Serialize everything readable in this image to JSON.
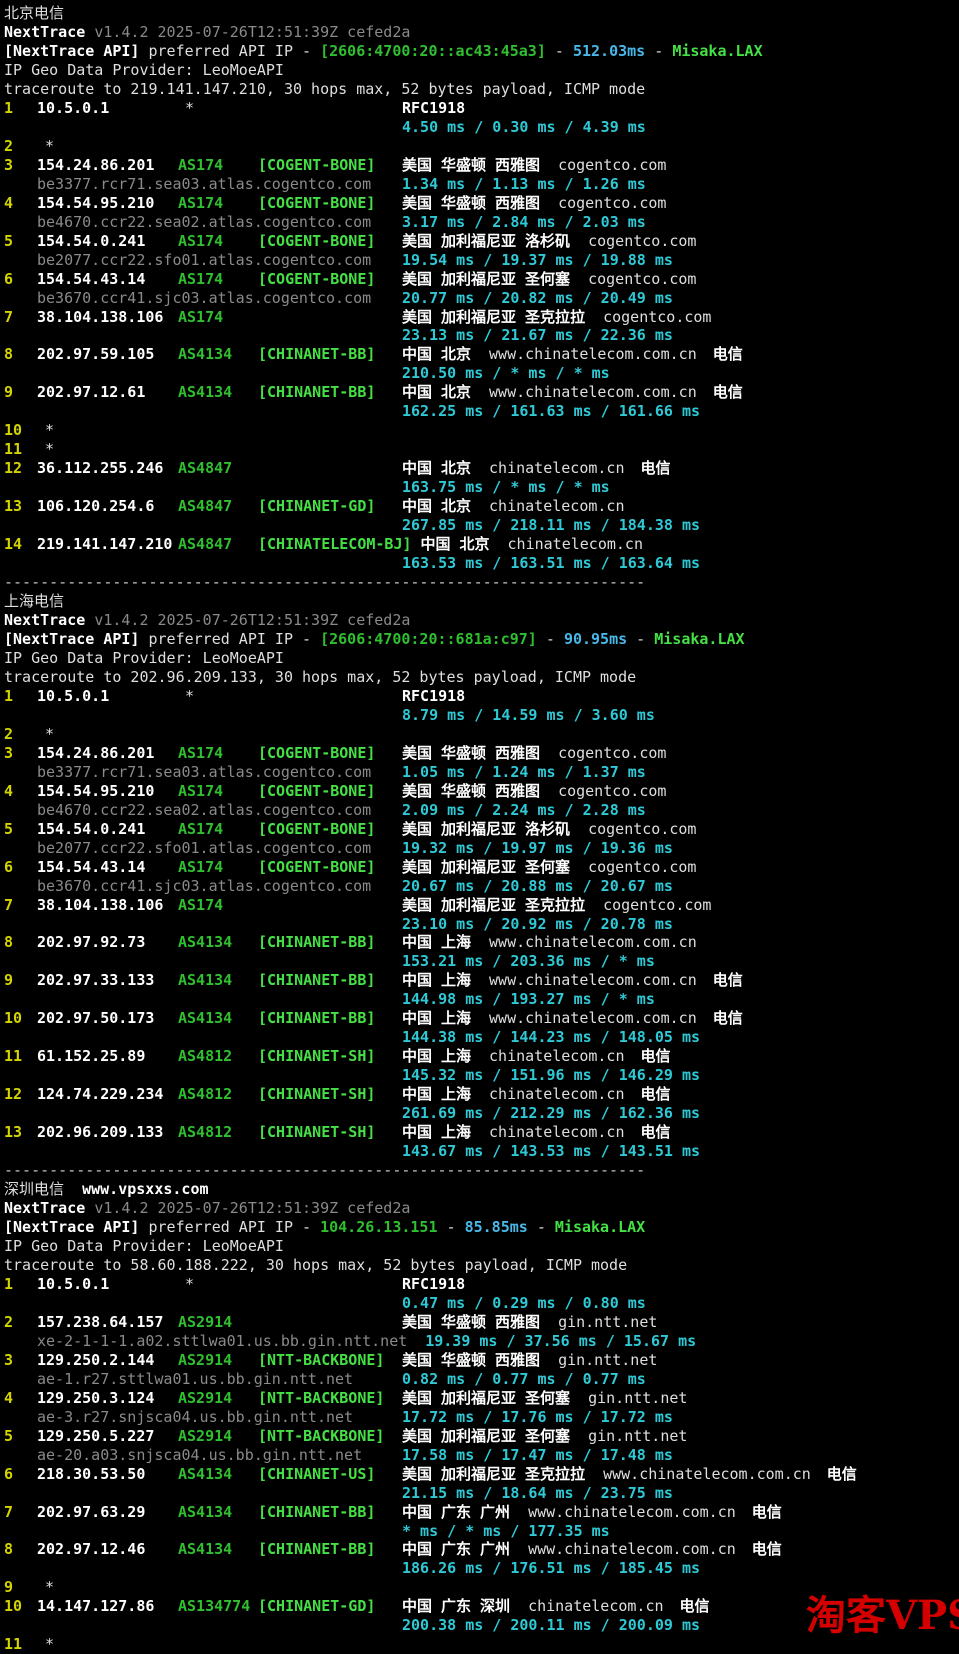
{
  "watermark": "淘客VPS",
  "separator": "-----------------------------------------------------------------------",
  "colors": {
    "background": "#000000",
    "foreground": "#DFDFDF",
    "hop_number_yellow": "#D4D400",
    "asn_green": "#2FBF2F",
    "tag_bright_green": "#45E045",
    "latency_cyan": "#2FC9D6",
    "api_latency_blue": "#49B8E8",
    "hostname_gray": "#8A8A8A",
    "watermark_red": "#D40000"
  },
  "sections": [
    {
      "title": [
        {
          "t": "北京电信",
          "c": "w"
        }
      ],
      "headers": [
        [
          {
            "t": "NextTrace",
            "c": "bw"
          },
          {
            "t": " ",
            "c": "w"
          },
          {
            "t": "v1.4.2 2025-07-26T12:51:39Z cefed2a",
            "c": "gy"
          }
        ],
        [
          {
            "t": "[NextTrace API]",
            "c": "bw"
          },
          {
            "t": " preferred API IP - ",
            "c": "w"
          },
          {
            "t": "[2606:4700:20::ac43:45a3]",
            "c": "g"
          },
          {
            "t": " - ",
            "c": "w"
          },
          {
            "t": "512.03ms",
            "c": "b"
          },
          {
            "t": " - ",
            "c": "w"
          },
          {
            "t": "Misaka.LAX",
            "c": "bg"
          }
        ],
        [
          {
            "t": "IP Geo Data Provider: LeoMoeAPI",
            "c": "w"
          }
        ],
        [
          {
            "t": "traceroute to 219.141.147.210, 30 hops max, 52 bytes payload, ICMP mode",
            "c": "w"
          }
        ]
      ],
      "hops": [
        {
          "n": "1",
          "ip": "10.5.0.1",
          "star2": "*",
          "geo": "RFC1918",
          "lat": "4.50 ms / 0.30 ms / 4.39 ms"
        },
        {
          "n": "2",
          "star": "*"
        },
        {
          "n": "3",
          "ip": "154.24.86.201",
          "asn": "AS174",
          "tag": "[COGENT-BONE]",
          "geo": "美国 华盛顿 西雅图",
          "domain": "cogentco.com",
          "host": "be3377.rcr71.sea03.atlas.cogentco.com",
          "lat": "1.34 ms / 1.13 ms / 1.26 ms"
        },
        {
          "n": "4",
          "ip": "154.54.95.210",
          "asn": "AS174",
          "tag": "[COGENT-BONE]",
          "geo": "美国 华盛顿 西雅图",
          "domain": "cogentco.com",
          "host": "be4670.ccr22.sea02.atlas.cogentco.com",
          "lat": "3.17 ms / 2.84 ms / 2.03 ms"
        },
        {
          "n": "5",
          "ip": "154.54.0.241",
          "asn": "AS174",
          "tag": "[COGENT-BONE]",
          "geo": "美国 加利福尼亚 洛杉矶",
          "domain": "cogentco.com",
          "host": "be2077.ccr22.sfo01.atlas.cogentco.com",
          "lat": "19.54 ms / 19.37 ms / 19.88 ms"
        },
        {
          "n": "6",
          "ip": "154.54.43.14",
          "asn": "AS174",
          "tag": "[COGENT-BONE]",
          "geo": "美国 加利福尼亚 圣何塞",
          "domain": "cogentco.com",
          "host": "be3670.ccr41.sjc03.atlas.cogentco.com",
          "lat": "20.77 ms / 20.82 ms / 20.49 ms"
        },
        {
          "n": "7",
          "ip": "38.104.138.106",
          "asn": "AS174",
          "geo": "美国 加利福尼亚 圣克拉拉",
          "domain": "cogentco.com",
          "lat": "23.13 ms / 21.67 ms / 22.36 ms"
        },
        {
          "n": "8",
          "ip": "202.97.59.105",
          "asn": "AS4134",
          "tag": "[CHINANET-BB]",
          "geo": "中国 北京",
          "domain": "www.chinatelecom.com.cn",
          "carrier": "电信",
          "lat": "210.50 ms / * ms / * ms"
        },
        {
          "n": "9",
          "ip": "202.97.12.61",
          "asn": "AS4134",
          "tag": "[CHINANET-BB]",
          "geo": "中国 北京",
          "domain": "www.chinatelecom.com.cn",
          "carrier": "电信",
          "lat": "162.25 ms / 161.63 ms / 161.66 ms"
        },
        {
          "n": "10",
          "star": "*"
        },
        {
          "n": "11",
          "star": "*"
        },
        {
          "n": "12",
          "ip": "36.112.255.246",
          "asn": "AS4847",
          "geo": "中国 北京",
          "domain": "chinatelecom.cn",
          "carrier": "电信",
          "lat": "163.75 ms / * ms / * ms"
        },
        {
          "n": "13",
          "ip": "106.120.254.6",
          "asn": "AS4847",
          "tag": "[CHINANET-GD]",
          "geo": "中国 北京",
          "domain": "chinatelecom.cn",
          "lat": "267.85 ms / 218.11 ms / 184.38 ms"
        },
        {
          "n": "14",
          "ip": "219.141.147.210",
          "asn": "AS4847",
          "tag": "[CHINATELECOM-BJ]",
          "geo": "中国 北京",
          "domain": "chinatelecom.cn",
          "lat": "163.53 ms / 163.51 ms / 163.64 ms"
        }
      ]
    },
    {
      "title": [
        {
          "t": "上海电信",
          "c": "w"
        }
      ],
      "headers": [
        [
          {
            "t": "NextTrace",
            "c": "bw"
          },
          {
            "t": " ",
            "c": "w"
          },
          {
            "t": "v1.4.2 2025-07-26T12:51:39Z cefed2a",
            "c": "gy"
          }
        ],
        [
          {
            "t": "[NextTrace API]",
            "c": "bw"
          },
          {
            "t": " preferred API IP - ",
            "c": "w"
          },
          {
            "t": "[2606:4700:20::681a:c97]",
            "c": "g"
          },
          {
            "t": " - ",
            "c": "w"
          },
          {
            "t": "90.95ms",
            "c": "b"
          },
          {
            "t": " - ",
            "c": "w"
          },
          {
            "t": "Misaka.LAX",
            "c": "bg"
          }
        ],
        [
          {
            "t": "IP Geo Data Provider: LeoMoeAPI",
            "c": "w"
          }
        ],
        [
          {
            "t": "traceroute to 202.96.209.133, 30 hops max, 52 bytes payload, ICMP mode",
            "c": "w"
          }
        ]
      ],
      "hops": [
        {
          "n": "1",
          "ip": "10.5.0.1",
          "star2": "*",
          "geo": "RFC1918",
          "lat": "8.79 ms / 14.59 ms / 3.60 ms"
        },
        {
          "n": "2",
          "star": "*"
        },
        {
          "n": "3",
          "ip": "154.24.86.201",
          "asn": "AS174",
          "tag": "[COGENT-BONE]",
          "geo": "美国 华盛顿 西雅图",
          "domain": "cogentco.com",
          "host": "be3377.rcr71.sea03.atlas.cogentco.com",
          "lat": "1.05 ms / 1.24 ms / 1.37 ms"
        },
        {
          "n": "4",
          "ip": "154.54.95.210",
          "asn": "AS174",
          "tag": "[COGENT-BONE]",
          "geo": "美国 华盛顿 西雅图",
          "domain": "cogentco.com",
          "host": "be4670.ccr22.sea02.atlas.cogentco.com",
          "lat": "2.09 ms / 2.24 ms / 2.28 ms"
        },
        {
          "n": "5",
          "ip": "154.54.0.241",
          "asn": "AS174",
          "tag": "[COGENT-BONE]",
          "geo": "美国 加利福尼亚 洛杉矶",
          "domain": "cogentco.com",
          "host": "be2077.ccr22.sfo01.atlas.cogentco.com",
          "lat": "19.32 ms / 19.97 ms / 19.36 ms"
        },
        {
          "n": "6",
          "ip": "154.54.43.14",
          "asn": "AS174",
          "tag": "[COGENT-BONE]",
          "geo": "美国 加利福尼亚 圣何塞",
          "domain": "cogentco.com",
          "host": "be3670.ccr41.sjc03.atlas.cogentco.com",
          "lat": "20.67 ms / 20.88 ms / 20.67 ms"
        },
        {
          "n": "7",
          "ip": "38.104.138.106",
          "asn": "AS174",
          "geo": "美国 加利福尼亚 圣克拉拉",
          "domain": "cogentco.com",
          "lat": "23.10 ms / 20.92 ms / 20.78 ms"
        },
        {
          "n": "8",
          "ip": "202.97.92.73",
          "asn": "AS4134",
          "tag": "[CHINANET-BB]",
          "geo": "中国 上海",
          "domain": "www.chinatelecom.com.cn",
          "lat": "153.21 ms / 203.36 ms / * ms"
        },
        {
          "n": "9",
          "ip": "202.97.33.133",
          "asn": "AS4134",
          "tag": "[CHINANET-BB]",
          "geo": "中国 上海",
          "domain": "www.chinatelecom.com.cn",
          "carrier": "电信",
          "lat": "144.98 ms / 193.27 ms / * ms"
        },
        {
          "n": "10",
          "ip": "202.97.50.173",
          "asn": "AS4134",
          "tag": "[CHINANET-BB]",
          "geo": "中国 上海",
          "domain": "www.chinatelecom.com.cn",
          "carrier": "电信",
          "lat": "144.38 ms / 144.23 ms / 148.05 ms"
        },
        {
          "n": "11",
          "ip": "61.152.25.89",
          "asn": "AS4812",
          "tag": "[CHINANET-SH]",
          "geo": "中国 上海",
          "domain": "chinatelecom.cn",
          "carrier": "电信",
          "lat": "145.32 ms / 151.96 ms / 146.29 ms"
        },
        {
          "n": "12",
          "ip": "124.74.229.234",
          "asn": "AS4812",
          "tag": "[CHINANET-SH]",
          "geo": "中国 上海",
          "domain": "chinatelecom.cn",
          "carrier": "电信",
          "lat": "261.69 ms / 212.29 ms / 162.36 ms"
        },
        {
          "n": "13",
          "ip": "202.96.209.133",
          "asn": "AS4812",
          "tag": "[CHINANET-SH]",
          "geo": "中国 上海",
          "domain": "chinatelecom.cn",
          "carrier": "电信",
          "lat": "143.67 ms / 143.53 ms / 143.51 ms"
        }
      ]
    },
    {
      "title": [
        {
          "t": "深圳电信",
          "c": "w"
        },
        {
          "t": "  ",
          "c": "w"
        },
        {
          "t": "www.vpsxxs.com",
          "c": "bw"
        }
      ],
      "headers": [
        [
          {
            "t": "NextTrace",
            "c": "bw"
          },
          {
            "t": " ",
            "c": "w"
          },
          {
            "t": "v1.4.2 2025-07-26T12:51:39Z cefed2a",
            "c": "gy"
          }
        ],
        [
          {
            "t": "[NextTrace API]",
            "c": "bw"
          },
          {
            "t": " preferred API IP - ",
            "c": "w"
          },
          {
            "t": "104.26.13.151",
            "c": "g"
          },
          {
            "t": " - ",
            "c": "w"
          },
          {
            "t": "85.85ms",
            "c": "b"
          },
          {
            "t": " - ",
            "c": "w"
          },
          {
            "t": "Misaka.LAX",
            "c": "bg"
          }
        ],
        [
          {
            "t": "IP Geo Data Provider: LeoMoeAPI",
            "c": "w"
          }
        ],
        [
          {
            "t": "traceroute to 58.60.188.222, 30 hops max, 52 bytes payload, ICMP mode",
            "c": "w"
          }
        ]
      ],
      "hops": [
        {
          "n": "1",
          "ip": "10.5.0.1",
          "star2": "*",
          "geo": "RFC1918",
          "lat": "0.47 ms / 0.29 ms / 0.80 ms"
        },
        {
          "n": "2",
          "ip": "157.238.64.157",
          "asn": "AS2914",
          "geo": "美国 华盛顿 西雅图",
          "domain": "gin.ntt.net",
          "host": "xe-2-1-1-1.a02.sttlwa01.us.bb.gin.ntt.net",
          "lat": "19.39 ms / 37.56 ms / 15.67 ms"
        },
        {
          "n": "3",
          "ip": "129.250.2.144",
          "asn": "AS2914",
          "tag": "[NTT-BACKBONE]",
          "geo": "美国 华盛顿 西雅图",
          "domain": "gin.ntt.net",
          "host": "ae-1.r27.sttlwa01.us.bb.gin.ntt.net",
          "lat": "0.82 ms / 0.77 ms / 0.77 ms"
        },
        {
          "n": "4",
          "ip": "129.250.3.124",
          "asn": "AS2914",
          "tag": "[NTT-BACKBONE]",
          "geo": "美国 加利福尼亚 圣何塞",
          "domain": "gin.ntt.net",
          "host": "ae-3.r27.snjsca04.us.bb.gin.ntt.net",
          "lat": "17.72 ms / 17.76 ms / 17.72 ms"
        },
        {
          "n": "5",
          "ip": "129.250.5.227",
          "asn": "AS2914",
          "tag": "[NTT-BACKBONE]",
          "geo": "美国 加利福尼亚 圣何塞",
          "domain": "gin.ntt.net",
          "host": "ae-20.a03.snjsca04.us.bb.gin.ntt.net",
          "lat": "17.58 ms / 17.47 ms / 17.48 ms"
        },
        {
          "n": "6",
          "ip": "218.30.53.50",
          "asn": "AS4134",
          "tag": "[CHINANET-US]",
          "geo": "美国 加利福尼亚 圣克拉拉",
          "domain": "www.chinatelecom.com.cn",
          "carrier": "电信",
          "lat": "21.15 ms / 18.64 ms / 23.75 ms"
        },
        {
          "n": "7",
          "ip": "202.97.63.29",
          "asn": "AS4134",
          "tag": "[CHINANET-BB]",
          "geo": "中国 广东 广州",
          "domain": "www.chinatelecom.com.cn",
          "carrier": "电信",
          "lat": "* ms / * ms / 177.35 ms"
        },
        {
          "n": "8",
          "ip": "202.97.12.46",
          "asn": "AS4134",
          "tag": "[CHINANET-BB]",
          "geo": "中国 广东 广州",
          "domain": "www.chinatelecom.com.cn",
          "carrier": "电信",
          "lat": "186.26 ms / 176.51 ms / 185.45 ms"
        },
        {
          "n": "9",
          "star": "*"
        },
        {
          "n": "10",
          "ip": "14.147.127.86",
          "asn": "AS134774",
          "tag": "[CHINANET-GD]",
          "geo": "中国 广东 深圳",
          "domain": "chinatelecom.cn",
          "carrier": "电信",
          "lat": "200.38 ms / 200.11 ms / 200.09 ms"
        },
        {
          "n": "11",
          "star": "*"
        }
      ]
    }
  ]
}
